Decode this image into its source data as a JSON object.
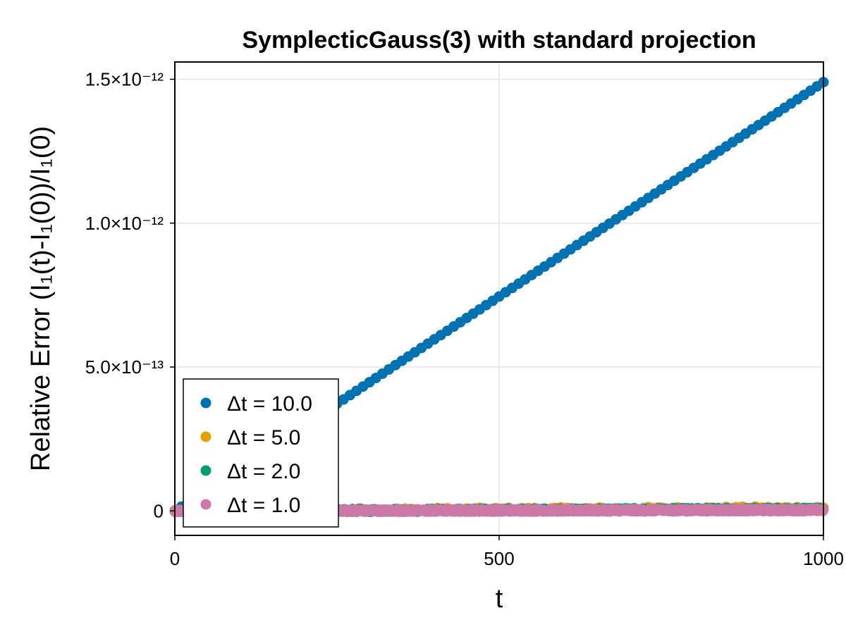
{
  "chart_data": {
    "type": "scatter",
    "title": "SymplecticGauss(3) with standard projection",
    "xlabel": "t",
    "ylabel": "Relative Error (I₁(t)-I₁(0))/I₁(0)",
    "xlim": [
      0,
      1000
    ],
    "ylim": [
      -8.5e-14,
      1.56e-12
    ],
    "x_ticks": [
      {
        "value": 0,
        "label": "0"
      },
      {
        "value": 500,
        "label": "500"
      },
      {
        "value": 1000,
        "label": "1000"
      }
    ],
    "y_ticks": [
      {
        "value": 0,
        "label": "0"
      },
      {
        "value": 5e-13,
        "label": "5.0×10⁻¹³"
      },
      {
        "value": 1e-12,
        "label": "1.0×10⁻¹²"
      },
      {
        "value": 1.5e-12,
        "label": "1.5×10⁻¹²"
      }
    ],
    "grid": true,
    "legend_position": "bottom-left",
    "series": [
      {
        "name": "Δt = 10.0",
        "color": "#0072B2",
        "dt": 10,
        "slope_per_unit_t": 1.49e-15,
        "noise": 0
      },
      {
        "name": "Δt = 5.0",
        "color": "#E69F00",
        "dt": 5,
        "slope_per_unit_t": 1e-17,
        "noise": 6e-15
      },
      {
        "name": "Δt = 2.0",
        "color": "#009E73",
        "dt": 2,
        "slope_per_unit_t": 6e-18,
        "noise": 5e-15
      },
      {
        "name": "Δt = 1.0",
        "color": "#CC79A7",
        "dt": 1,
        "slope_per_unit_t": 3e-18,
        "noise": 4e-15
      }
    ]
  }
}
